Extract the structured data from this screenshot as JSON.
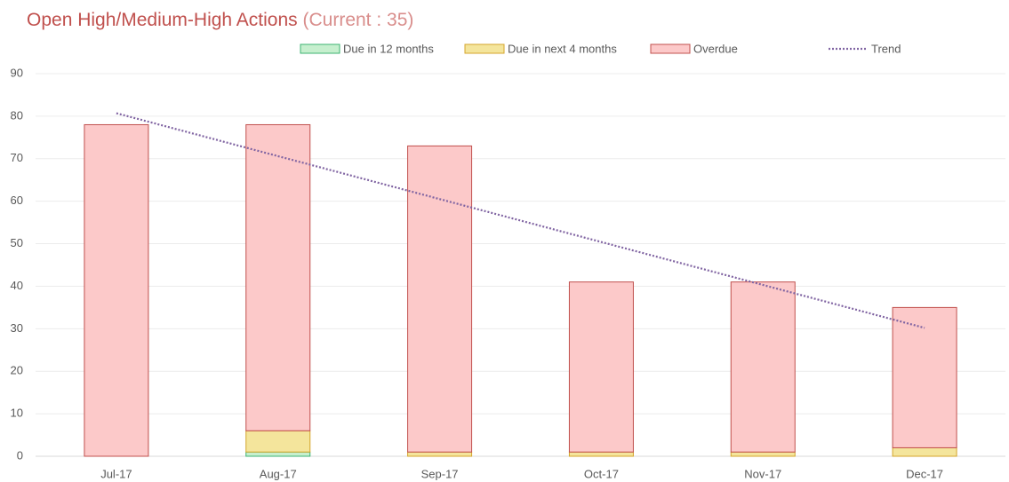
{
  "chart_data": {
    "type": "bar",
    "stacked": true,
    "title": "Open High/Medium-High Actions",
    "subtitle": "(Current : 35)",
    "categories": [
      "Jul-17",
      "Aug-17",
      "Sep-17",
      "Oct-17",
      "Nov-17",
      "Dec-17"
    ],
    "series": [
      {
        "name": "Due in 12 months",
        "type": "bar",
        "color": "#c6efce",
        "stroke": "#3cb371",
        "values": [
          0,
          1,
          0,
          0,
          0,
          0
        ]
      },
      {
        "name": "Due in next 4 months",
        "type": "bar",
        "color": "#f4e59c",
        "stroke": "#d4a52b",
        "values": [
          0,
          5,
          1,
          1,
          1,
          2
        ]
      },
      {
        "name": "Overdue",
        "type": "bar",
        "color": "#fcc9c9",
        "stroke": "#c0504d",
        "values": [
          78,
          72,
          72,
          40,
          40,
          33
        ]
      },
      {
        "name": "Trend",
        "type": "line",
        "color": "#8064a2",
        "dotted": true,
        "values": [
          80.7,
          70.6,
          60.5,
          50.4,
          40.3,
          30.2
        ]
      }
    ],
    "ylim": [
      0,
      90
    ],
    "yticks": [
      0,
      10,
      20,
      30,
      40,
      50,
      60,
      70,
      80,
      90
    ],
    "grid": true,
    "legend": "top"
  }
}
